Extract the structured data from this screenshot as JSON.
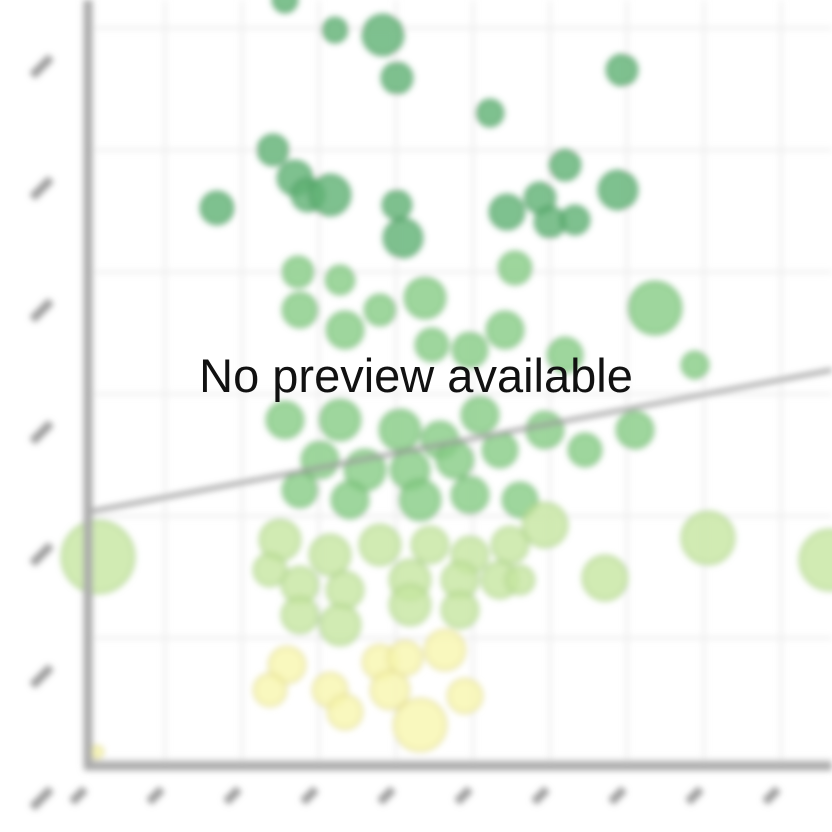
{
  "message": "No preview available"
}
